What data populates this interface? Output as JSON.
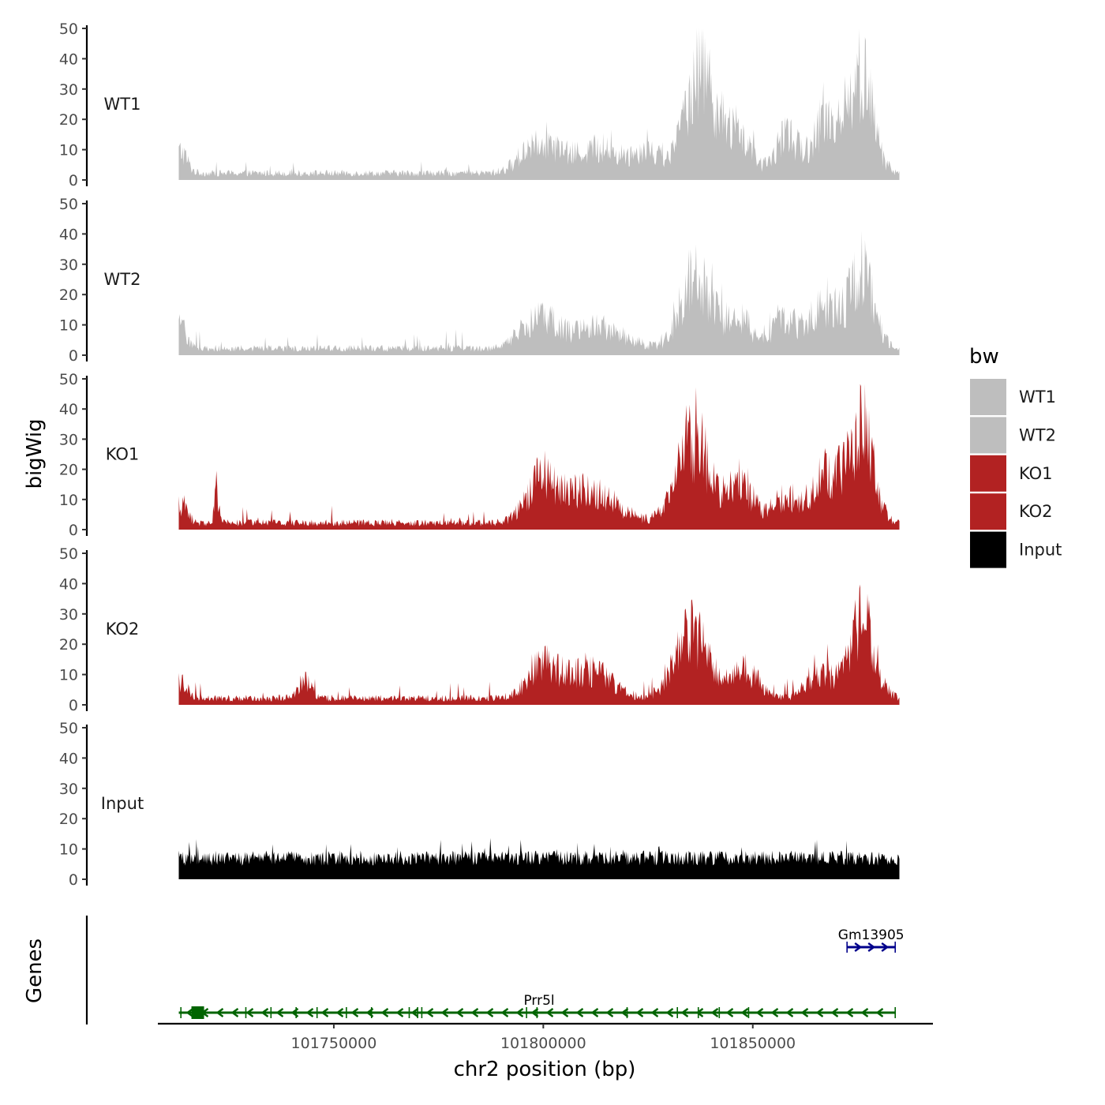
{
  "chart_data": {
    "type": "area",
    "title": "",
    "ylabel": "bigWig",
    "xlabel": "chr2 position (bp)",
    "genes_label": "Genes",
    "ylim": [
      0,
      50
    ],
    "yticks": [
      0,
      10,
      20,
      30,
      40,
      50
    ],
    "xlim": [
      101708000,
      101893000
    ],
    "data_range": [
      101713000,
      101885000
    ],
    "xticks": [
      101750000,
      101800000,
      101850000
    ],
    "xtick_labels": [
      "101750000",
      "101800000",
      "101850000"
    ],
    "legend": {
      "title": "bw",
      "placement": "right",
      "entries": [
        {
          "label": "WT1",
          "color": "#bebebe"
        },
        {
          "label": "WT2",
          "color": "#bebebe"
        },
        {
          "label": "KO1",
          "color": "#b22222"
        },
        {
          "label": "KO2",
          "color": "#b22222"
        },
        {
          "label": "Input",
          "color": "#000000"
        }
      ]
    },
    "series": [
      {
        "name": "WT1",
        "color": "#bebebe",
        "peaks": [
          {
            "center": 101713500,
            "width": 1500,
            "height": 8
          },
          {
            "center": 101799000,
            "width": 4000,
            "height": 12
          },
          {
            "center": 101813000,
            "width": 6000,
            "height": 9
          },
          {
            "center": 101825000,
            "width": 3000,
            "height": 8
          },
          {
            "center": 101837500,
            "width": 3500,
            "height": 40
          },
          {
            "center": 101846500,
            "width": 3000,
            "height": 14
          },
          {
            "center": 101858000,
            "width": 2500,
            "height": 14
          },
          {
            "center": 101868000,
            "width": 3500,
            "height": 20
          },
          {
            "center": 101876000,
            "width": 2800,
            "height": 34
          }
        ]
      },
      {
        "name": "WT2",
        "color": "#bebebe",
        "peaks": [
          {
            "center": 101713500,
            "width": 1500,
            "height": 8
          },
          {
            "center": 101799000,
            "width": 4000,
            "height": 11
          },
          {
            "center": 101813000,
            "width": 6000,
            "height": 8
          },
          {
            "center": 101836500,
            "width": 3500,
            "height": 28
          },
          {
            "center": 101846500,
            "width": 3000,
            "height": 12
          },
          {
            "center": 101857500,
            "width": 2500,
            "height": 12
          },
          {
            "center": 101867000,
            "width": 3500,
            "height": 17
          },
          {
            "center": 101876000,
            "width": 2800,
            "height": 28
          }
        ]
      },
      {
        "name": "KO1",
        "color": "#b22222",
        "peaks": [
          {
            "center": 101713500,
            "width": 1500,
            "height": 7
          },
          {
            "center": 101722000,
            "width": 500,
            "height": 12
          },
          {
            "center": 101799500,
            "width": 3500,
            "height": 15
          },
          {
            "center": 101811000,
            "width": 6000,
            "height": 12
          },
          {
            "center": 101836000,
            "width": 4000,
            "height": 30
          },
          {
            "center": 101847000,
            "width": 3000,
            "height": 15
          },
          {
            "center": 101858000,
            "width": 3000,
            "height": 10
          },
          {
            "center": 101868000,
            "width": 3500,
            "height": 18
          },
          {
            "center": 101876000,
            "width": 2800,
            "height": 34
          }
        ]
      },
      {
        "name": "KO2",
        "color": "#b22222",
        "peaks": [
          {
            "center": 101713500,
            "width": 1500,
            "height": 6
          },
          {
            "center": 101743000,
            "width": 1500,
            "height": 6
          },
          {
            "center": 101800000,
            "width": 3500,
            "height": 12
          },
          {
            "center": 101811000,
            "width": 5000,
            "height": 10
          },
          {
            "center": 101835500,
            "width": 4000,
            "height": 24
          },
          {
            "center": 101848000,
            "width": 3000,
            "height": 10
          },
          {
            "center": 101866000,
            "width": 3000,
            "height": 10
          },
          {
            "center": 101876000,
            "width": 3000,
            "height": 28
          }
        ]
      },
      {
        "name": "Input",
        "color": "#000000",
        "peaks": []
      }
    ],
    "genes": [
      {
        "name": "Gm13905",
        "start": 101872500,
        "end": 101884000,
        "strand": "+",
        "row": 1,
        "color": "#00008b",
        "exon_starts": [
          101872500,
          101884000
        ]
      },
      {
        "name": "Prr5l",
        "start": 101713000,
        "end": 101884000,
        "strand": "-",
        "row": 2,
        "color": "#006400",
        "label_position": 101799000,
        "exon_starts": [
          101713500,
          101729000,
          101735000,
          101741000,
          101746000,
          101753000,
          101759000,
          101768000,
          101770000,
          101771000,
          101796000,
          101798500,
          101820000,
          101832000,
          101837000,
          101842000,
          101849000,
          101884000
        ]
      }
    ]
  }
}
